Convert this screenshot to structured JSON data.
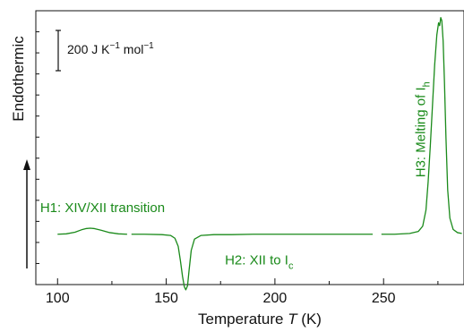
{
  "chart_data": {
    "type": "line",
    "xlabel_prefix": "Temperature ",
    "xlabel_var": "T",
    "xlabel_unit": " (K)",
    "ylabel": "Endothermic",
    "xlim": [
      90,
      287
    ],
    "ylim": [
      -1.25,
      5.55
    ],
    "grid": false,
    "x_ticks": [
      100,
      150,
      200,
      250
    ],
    "x_tick_labels": [
      "100",
      "150",
      "200",
      "250"
    ],
    "minor_x_ticks": [
      125,
      175,
      225,
      275
    ],
    "scale_bar": {
      "label_main": "200 J K",
      "label_exp1": "−1",
      "label_mid": " mol",
      "label_exp2": "−1",
      "magnitude": 200
    },
    "series": [
      {
        "color": "#1a8a1a",
        "segments": [
          {
            "x": [
              100,
              104,
              108,
              111,
              113,
              115,
              117,
              120,
              124,
              128,
              132
            ],
            "y": [
              0.0,
              0.01,
              0.05,
              0.11,
              0.14,
              0.15,
              0.14,
              0.1,
              0.04,
              0.01,
              0.0
            ]
          },
          {
            "x": [
              134,
              140,
              148,
              152,
              154,
              155.5,
              156.5,
              157.5,
              158.3,
              159,
              159.8,
              160.5,
              161.5,
              163,
              166,
              172,
              180,
              190,
              200,
              215,
              230,
              245
            ],
            "y": [
              0.0,
              0.0,
              -0.01,
              -0.03,
              -0.1,
              -0.3,
              -0.65,
              -1.05,
              -1.3,
              -1.38,
              -1.28,
              -0.9,
              -0.4,
              -0.12,
              -0.03,
              -0.01,
              -0.01,
              0.0,
              0.0,
              0.0,
              0.0,
              0.0
            ]
          },
          {
            "x": [
              249,
              255,
              262,
              266,
              268,
              269.5,
              270.5,
              271.5,
              272.5,
              273.5,
              274.5,
              275.3,
              275.8,
              276.3,
              276.8,
              277.4,
              278,
              278.7,
              279.5,
              280.5,
              282,
              284,
              286
            ],
            "y": [
              0.0,
              0.0,
              0.02,
              0.07,
              0.2,
              0.6,
              1.3,
              2.2,
              3.2,
              4.2,
              4.95,
              5.25,
              5.18,
              5.38,
              5.3,
              4.8,
              3.8,
              2.4,
              1.1,
              0.4,
              0.12,
              0.04,
              0.02
            ]
          }
        ]
      }
    ],
    "annotations": [
      {
        "id": "h1",
        "text": "H1: XIV/XII transition",
        "x": 92,
        "y": 0.55
      },
      {
        "id": "h2",
        "prefix": "H2: XII to I",
        "sub": "c",
        "x": 177,
        "y": -0.75
      },
      {
        "id": "h3",
        "prefix": "H3: Melting of I",
        "sub": "h",
        "x": 269,
        "y": 2.6
      }
    ]
  }
}
